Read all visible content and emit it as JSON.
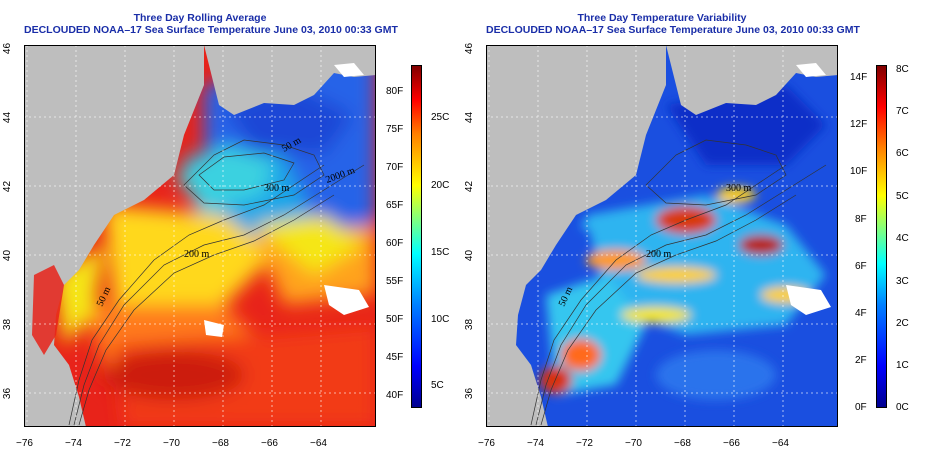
{
  "left_panel": {
    "title_line1": "Three Day Rolling Average",
    "title_line2": "DECLOUDED NOAA–17 Sea Surface Temperature June 03, 2010 00:33 GMT",
    "colorbar_f": [
      "40F",
      "45F",
      "50F",
      "55F",
      "60F",
      "65F",
      "70F",
      "75F",
      "80F"
    ],
    "colorbar_c": [
      "5C",
      "10C",
      "15C",
      "20C",
      "25C"
    ],
    "contour_labels": [
      "50 m",
      "200 m",
      "300 m",
      "2000 m",
      "50 m"
    ]
  },
  "right_panel": {
    "title_line1": "Three Day Temperature Variability",
    "title_line2": "DECLOUDED NOAA–17 Sea Surface Temperature June 03, 2010 00:33 GMT",
    "colorbar_f": [
      "0F",
      "2F",
      "4F",
      "6F",
      "8F",
      "10F",
      "12F",
      "14F"
    ],
    "colorbar_c": [
      "0C",
      "1C",
      "2C",
      "3C",
      "4C",
      "5C",
      "6C",
      "7C",
      "8C"
    ],
    "contour_labels": [
      "50 m",
      "200 m",
      "300 m"
    ]
  },
  "x_ticks": [
    "−76",
    "−74",
    "−72",
    "−70",
    "−68",
    "−66",
    "−64"
  ],
  "y_ticks": [
    "36",
    "38",
    "40",
    "42",
    "44",
    "46"
  ],
  "colors": {
    "title": "#1a2ea8",
    "land": "#bebebe",
    "cloud": "#ffffff"
  }
}
